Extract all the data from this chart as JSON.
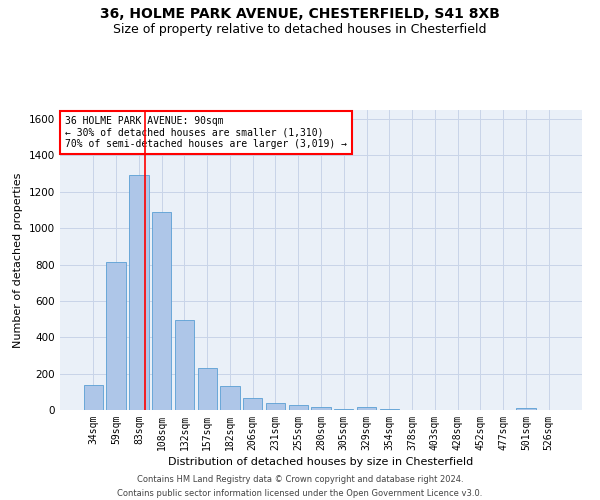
{
  "title_line1": "36, HOLME PARK AVENUE, CHESTERFIELD, S41 8XB",
  "title_line2": "Size of property relative to detached houses in Chesterfield",
  "xlabel": "Distribution of detached houses by size in Chesterfield",
  "ylabel": "Number of detached properties",
  "footer_line1": "Contains HM Land Registry data © Crown copyright and database right 2024.",
  "footer_line2": "Contains public sector information licensed under the Open Government Licence v3.0.",
  "categories": [
    "34sqm",
    "59sqm",
    "83sqm",
    "108sqm",
    "132sqm",
    "157sqm",
    "182sqm",
    "206sqm",
    "231sqm",
    "255sqm",
    "280sqm",
    "305sqm",
    "329sqm",
    "354sqm",
    "378sqm",
    "403sqm",
    "428sqm",
    "452sqm",
    "477sqm",
    "501sqm",
    "526sqm"
  ],
  "bar_values": [
    140,
    815,
    1295,
    1090,
    495,
    230,
    130,
    65,
    38,
    25,
    18,
    5,
    15,
    3,
    2,
    1,
    0,
    0,
    0,
    12,
    0
  ],
  "bar_color": "#aec6e8",
  "bar_edge_color": "#5a9fd4",
  "grid_color": "#c8d4e8",
  "background_color": "#eaf0f8",
  "vline_color": "red",
  "vline_position": 2.28,
  "ylim": [
    0,
    1650
  ],
  "yticks": [
    0,
    200,
    400,
    600,
    800,
    1000,
    1200,
    1400,
    1600
  ],
  "annotation_title": "36 HOLME PARK AVENUE: 90sqm",
  "annotation_line1": "← 30% of detached houses are smaller (1,310)",
  "annotation_line2": "70% of semi-detached houses are larger (3,019) →",
  "annotation_box_color": "white",
  "annotation_box_edge_color": "red",
  "title_fontsize": 10,
  "subtitle_fontsize": 9,
  "tick_fontsize": 7,
  "ylabel_fontsize": 8,
  "xlabel_fontsize": 8,
  "footer_fontsize": 6
}
